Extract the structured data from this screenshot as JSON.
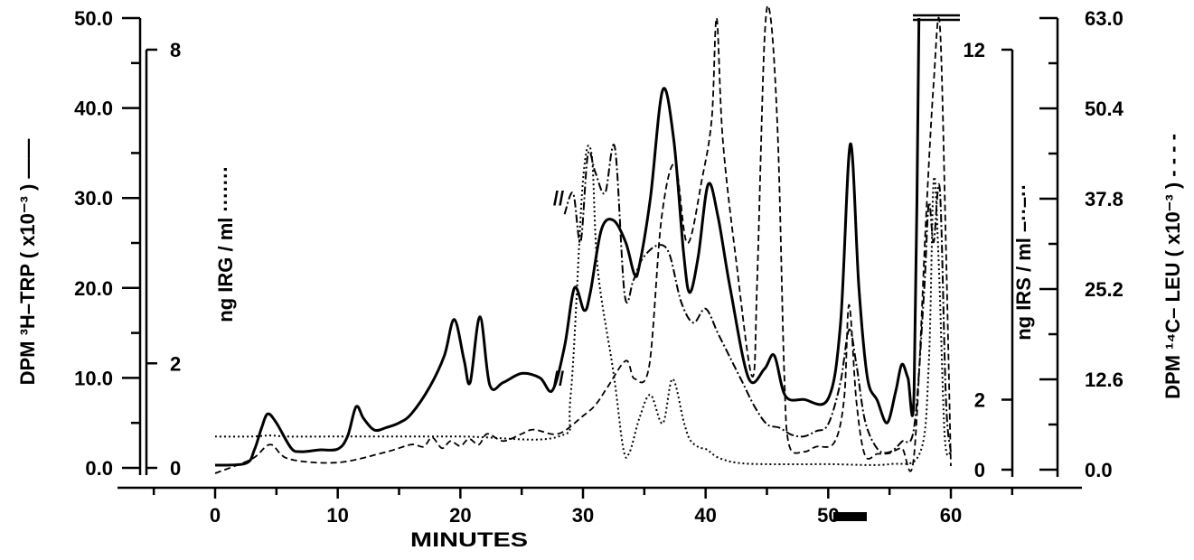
{
  "chart_data": {
    "type": "line",
    "title": "",
    "xlabel": "MINUTES",
    "xlim": [
      -7,
      68
    ],
    "x_ticks": [
      "0",
      "10",
      "20",
      "30",
      "40",
      "50",
      "60"
    ],
    "axes": {
      "left_outer": {
        "label": "DPM ³H–TRP ( x10⁻³ ) ——",
        "range": [
          0,
          50
        ],
        "ticks": [
          "0.0",
          "10.0",
          "20.0",
          "30.0",
          "40.0",
          "50.0"
        ]
      },
      "left_inner": {
        "label": "ng IRG / ml ·······",
        "range": [
          0,
          8
        ],
        "ticks": [
          "0",
          "2",
          "8"
        ]
      },
      "right_inner": {
        "label": "ng IRS / ml –··–··",
        "range": [
          0,
          12
        ],
        "ticks": [
          "0",
          "2",
          "12"
        ]
      },
      "right_outer": {
        "label": "DPM ¹⁴C– LEU ( x10⁻³ ) - - - -",
        "range": [
          0,
          63
        ],
        "ticks": [
          "0.0",
          "12.6",
          "25.2",
          "37.8",
          "50.4",
          "63.0"
        ]
      }
    },
    "series": [
      {
        "axis": "left_outer",
        "style": "solid",
        "x": [
          0,
          2.5,
          3.2,
          3.8,
          4.3,
          5,
          6.2,
          7,
          8.5,
          10,
          10.8,
          11.5,
          12.1,
          13,
          14,
          15,
          16,
          17.5,
          18.7,
          19.5,
          20.3,
          20.8,
          21.6,
          22.4,
          23.5,
          25,
          26.5,
          27.5,
          28.5,
          29.3,
          30.1,
          30.6,
          31.5,
          32.5,
          33.5,
          34.2,
          34.6,
          35.5,
          36.5,
          37.4,
          38.2,
          38.7,
          39.4,
          40.2,
          41,
          42,
          43.5,
          44.8,
          45.6,
          46.5,
          48,
          50,
          51,
          51.8,
          52.5,
          53.2,
          54,
          54.8,
          55.5,
          56,
          56.5,
          57,
          57.4
        ],
        "y": [
          0.3,
          0.5,
          2,
          4.5,
          6,
          5,
          2.2,
          1.8,
          2,
          2.1,
          3.5,
          6.8,
          5.5,
          4.2,
          4.5,
          5,
          6,
          9,
          12.5,
          16.5,
          12,
          9.5,
          16.8,
          9.2,
          9.5,
          10.5,
          10,
          8.6,
          13.5,
          20,
          17.5,
          19.5,
          26.5,
          27.5,
          25,
          21.5,
          22.5,
          30,
          42,
          36.5,
          24,
          19.5,
          23.5,
          31.5,
          28,
          20,
          10,
          11,
          12.5,
          8,
          7.6,
          7.7,
          16,
          36,
          20,
          10,
          7.5,
          5,
          8.5,
          11.5,
          10,
          8.5,
          50
        ]
      },
      {
        "axis": "right_outer",
        "style": "dashed",
        "x": [
          0,
          3,
          4.5,
          6,
          10,
          14,
          16,
          17,
          17.7,
          18.5,
          19.2,
          20,
          20.7,
          21.5,
          22.2,
          23.5,
          25,
          26,
          28,
          30,
          31,
          32,
          33.5,
          34.2,
          35.4,
          36.4,
          37.5,
          38.5,
          39.7,
          40.5,
          40.9,
          41.4,
          42.5,
          43.8,
          44.2,
          44.8,
          45.3,
          45.9,
          46.4,
          46.8,
          48,
          49,
          50.5,
          51.3,
          51.7,
          52.3,
          53,
          54,
          55,
          56,
          57,
          58,
          58.6,
          59.1,
          59.6,
          60
        ],
        "y": [
          -0.5,
          1.5,
          3.5,
          1.5,
          1,
          2.5,
          3.5,
          3.2,
          4.5,
          3,
          4,
          3.3,
          4.3,
          3.5,
          5,
          4,
          5,
          5.6,
          5,
          7.5,
          9,
          11.5,
          15.2,
          12.7,
          14.5,
          35,
          42.6,
          31.6,
          40.5,
          49,
          63,
          46,
          29,
          13,
          26,
          60,
          63,
          46,
          14,
          3.5,
          2.5,
          3.2,
          3.8,
          10,
          23,
          9.5,
          2,
          2.2,
          2.3,
          3,
          2,
          36,
          54,
          62,
          31,
          0.5
        ]
      },
      {
        "axis": "left_inner",
        "style": "dotted",
        "x": [
          0,
          3,
          4.5,
          6,
          10,
          20,
          28,
          29,
          30,
          30.7,
          31.2,
          32.5,
          33.3,
          33.8,
          34.6,
          35.5,
          36.5,
          37.3,
          38.2,
          38.7,
          39.4,
          40.1,
          41,
          42.5,
          45,
          50,
          55,
          57.5,
          58.2,
          58.6,
          59,
          59.5,
          60
        ],
        "y": [
          0.6,
          0.6,
          0.62,
          0.6,
          0.6,
          0.6,
          0.6,
          1.4,
          5.5,
          6,
          3.8,
          1.8,
          0.35,
          0.3,
          0.95,
          1.4,
          0.85,
          1.7,
          0.9,
          0.55,
          0.4,
          0.35,
          0.2,
          0.1,
          0.07,
          0.07,
          0.07,
          0.3,
          2,
          5.5,
          4,
          0.6,
          0.3
        ]
      },
      {
        "axis": "right_inner",
        "style": "dashdot",
        "x": [
          28.5,
          29.2,
          29.8,
          30.4,
          31,
          31.8,
          32.6,
          33.4,
          34.1,
          34.8,
          36,
          37,
          38,
          39,
          40,
          41,
          42,
          43,
          44,
          45,
          46,
          47,
          48,
          49,
          50,
          51,
          51.7,
          52.3,
          53,
          54,
          55,
          56,
          57,
          57.8,
          58.2,
          58.6,
          59.1,
          59.6,
          60
        ],
        "y": [
          7.3,
          7.9,
          6.5,
          9,
          8.5,
          7.9,
          9.2,
          5,
          5.4,
          6,
          6.4,
          6.2,
          4.8,
          4.2,
          4.6,
          3.9,
          3.2,
          2.5,
          1.8,
          1.3,
          1.2,
          1,
          0.95,
          1.1,
          1.3,
          2.5,
          4,
          3,
          1.4,
          0.6,
          0.5,
          0.8,
          1.2,
          5,
          7.6,
          6.5,
          8,
          2,
          0.5
        ]
      }
    ],
    "annotations": [
      {
        "x": 28,
        "axis": "left_outer",
        "y": 10,
        "text": "//"
      },
      {
        "x": 28,
        "axis": "left_outer",
        "y": 30,
        "text": "//"
      }
    ],
    "grid": false,
    "legend": "none"
  }
}
